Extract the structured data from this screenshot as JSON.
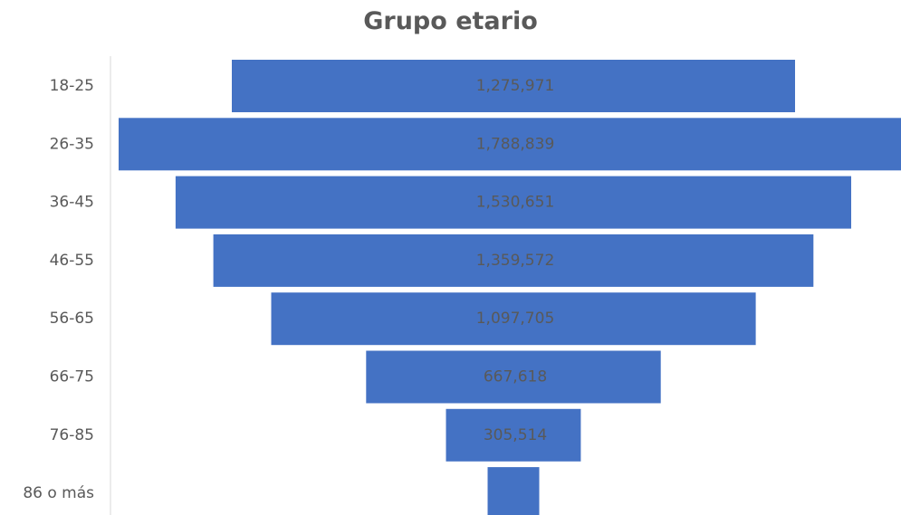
{
  "chart_data": {
    "type": "bar",
    "subtype": "funnel",
    "title": "Grupo etario",
    "categories": [
      "18-25",
      "26-35",
      "36-45",
      "46-55",
      "56-65",
      "66-75",
      "76-85",
      "86 o más"
    ],
    "values": [
      1275971,
      1788839,
      1530651,
      1359572,
      1097705,
      667618,
      305514,
      117000
    ],
    "data_labels": [
      "1,275,971",
      "1,788,839",
      "1,530,651",
      "1,359,572",
      "1,097,705",
      "667,618",
      "305,514",
      ""
    ],
    "xlabel": "",
    "ylabel": "",
    "grid": false,
    "legend": "none",
    "bar_color": "#4472C4",
    "axis_color": "#D9D9D9"
  }
}
